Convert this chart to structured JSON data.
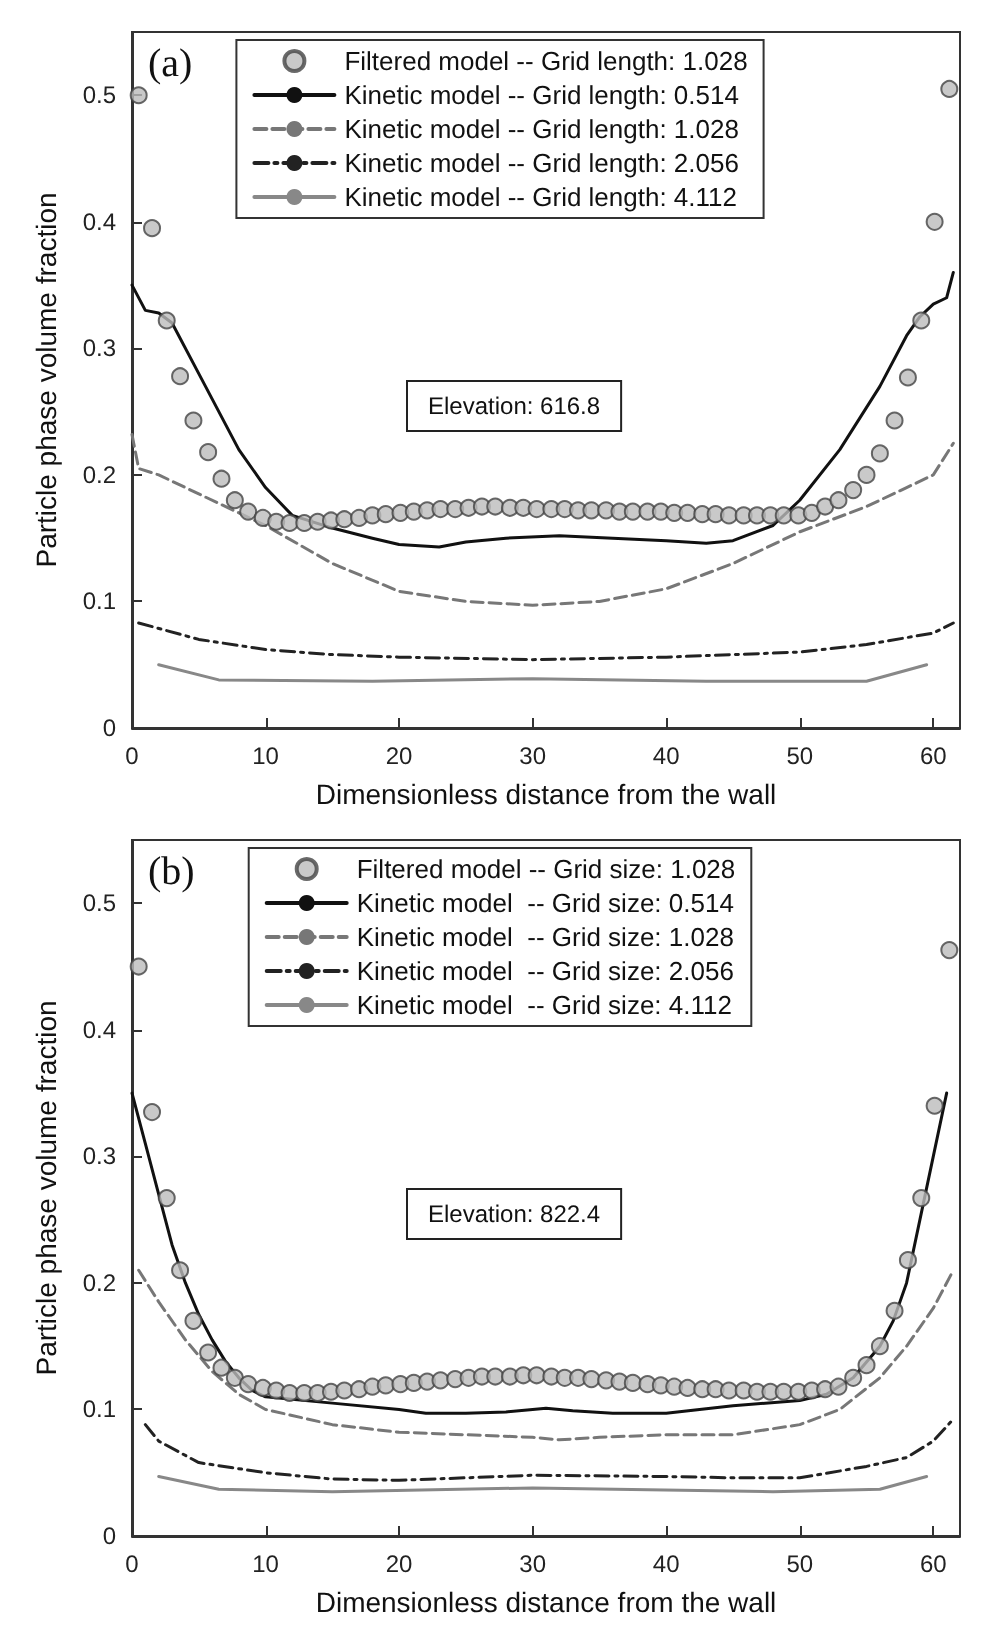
{
  "chart_data": [
    {
      "type": "line",
      "xlabel": "Dimensionless distance from the wall",
      "ylabel": "Particle phase volume fraction",
      "annotations": [
        "(a)",
        "Elevation: 616.8"
      ],
      "xlim": [
        0,
        62
      ],
      "xticks": [
        0,
        10,
        20,
        30,
        40,
        50,
        60
      ],
      "ylim": [
        0,
        0.55
      ],
      "yticks": [
        0,
        0.1,
        0.2,
        0.3,
        0.4,
        0.5
      ],
      "grid": false,
      "legend": "top",
      "series": [
        {
          "name": "Filtered model -- Grid length: 1.028",
          "type": "scatter",
          "marker": "circle",
          "color": "#bbbbbb",
          "x": [
            0.5,
            1.5,
            2.6,
            3.6,
            4.6,
            5.7,
            6.7,
            7.7,
            8.7,
            9.8,
            10.8,
            11.8,
            12.9,
            13.9,
            14.9,
            15.9,
            17.0,
            18.0,
            19.0,
            20.1,
            21.1,
            22.1,
            23.1,
            24.2,
            25.2,
            26.2,
            27.2,
            28.3,
            29.3,
            30.3,
            31.4,
            32.4,
            33.4,
            34.4,
            35.5,
            36.5,
            37.5,
            38.6,
            39.6,
            40.6,
            41.6,
            42.7,
            43.7,
            44.7,
            45.8,
            46.8,
            47.8,
            48.8,
            49.9,
            50.9,
            51.9,
            52.9,
            54.0,
            55.0,
            56.0,
            57.1,
            58.1,
            59.1,
            60.1,
            61.2
          ],
          "values": [
            0.5,
            0.395,
            0.322,
            0.278,
            0.243,
            0.218,
            0.197,
            0.18,
            0.171,
            0.166,
            0.163,
            0.162,
            0.162,
            0.163,
            0.164,
            0.165,
            0.166,
            0.168,
            0.169,
            0.17,
            0.171,
            0.172,
            0.173,
            0.173,
            0.174,
            0.175,
            0.175,
            0.174,
            0.174,
            0.173,
            0.173,
            0.173,
            0.172,
            0.172,
            0.172,
            0.171,
            0.171,
            0.171,
            0.171,
            0.17,
            0.17,
            0.169,
            0.169,
            0.168,
            0.168,
            0.168,
            0.168,
            0.168,
            0.168,
            0.17,
            0.175,
            0.18,
            0.188,
            0.2,
            0.217,
            0.243,
            0.277,
            0.322,
            0.4,
            0.505
          ]
        },
        {
          "name": "Kinetic model -- Grid length: 0.514",
          "type": "line",
          "line_style": "solid",
          "marker": "none",
          "color": "#111111",
          "x": [
            0,
            1,
            2,
            3,
            5,
            8,
            10,
            12,
            15,
            18,
            20,
            23,
            25,
            28,
            32,
            36,
            40,
            43,
            45,
            48,
            50,
            53,
            56,
            58,
            59,
            60,
            61,
            61.5
          ],
          "values": [
            0.35,
            0.33,
            0.328,
            0.32,
            0.28,
            0.22,
            0.19,
            0.168,
            0.158,
            0.15,
            0.145,
            0.143,
            0.147,
            0.15,
            0.152,
            0.15,
            0.148,
            0.146,
            0.148,
            0.16,
            0.18,
            0.22,
            0.27,
            0.31,
            0.325,
            0.335,
            0.34,
            0.36
          ]
        },
        {
          "name": "Kinetic model -- Grid length: 1.028",
          "type": "line",
          "line_style": "dashed",
          "marker": "none",
          "color": "#777777",
          "x": [
            0,
            0.5,
            2,
            5,
            10,
            15,
            20,
            25,
            30,
            35,
            40,
            45,
            50,
            55,
            58,
            60,
            61.5
          ],
          "values": [
            0.232,
            0.205,
            0.2,
            0.185,
            0.16,
            0.13,
            0.108,
            0.1,
            0.097,
            0.1,
            0.11,
            0.13,
            0.155,
            0.175,
            0.19,
            0.2,
            0.225
          ]
        },
        {
          "name": "Kinetic model -- Grid length: 2.056",
          "type": "line",
          "line_style": "dotted",
          "marker": "none",
          "color": "#222222",
          "x": [
            0.5,
            5,
            10,
            15,
            20,
            30,
            40,
            50,
            55,
            60,
            61.5
          ],
          "values": [
            0.083,
            0.07,
            0.062,
            0.058,
            0.056,
            0.054,
            0.056,
            0.06,
            0.066,
            0.075,
            0.083
          ]
        },
        {
          "name": "Kinetic model -- Grid length: 4.112",
          "type": "line",
          "line_style": "solid",
          "marker": "none",
          "color": "#888888",
          "x": [
            2,
            6.5,
            18,
            30,
            43,
            55,
            59.5
          ],
          "values": [
            0.05,
            0.038,
            0.037,
            0.039,
            0.037,
            0.037,
            0.05
          ]
        }
      ]
    },
    {
      "type": "line",
      "xlabel": "Dimensionless distance from the wall",
      "ylabel": "Particle phase volume fraction",
      "annotations": [
        "(b)",
        "Elevation: 822.4"
      ],
      "xlim": [
        0,
        62
      ],
      "xticks": [
        0,
        10,
        20,
        30,
        40,
        50,
        60
      ],
      "ylim": [
        0,
        0.55
      ],
      "yticks": [
        0,
        0.1,
        0.2,
        0.3,
        0.4,
        0.5
      ],
      "grid": false,
      "legend": "top",
      "series": [
        {
          "name": "Filtered model -- Grid size: 1.028",
          "type": "scatter",
          "marker": "circle",
          "color": "#bbbbbb",
          "x": [
            0.5,
            1.5,
            2.6,
            3.6,
            4.6,
            5.7,
            6.7,
            7.7,
            8.7,
            9.8,
            10.8,
            11.8,
            12.9,
            13.9,
            14.9,
            15.9,
            17.0,
            18.0,
            19.0,
            20.1,
            21.1,
            22.1,
            23.1,
            24.2,
            25.2,
            26.2,
            27.2,
            28.3,
            29.3,
            30.3,
            31.4,
            32.4,
            33.4,
            34.4,
            35.5,
            36.5,
            37.5,
            38.6,
            39.6,
            40.6,
            41.6,
            42.7,
            43.7,
            44.7,
            45.8,
            46.8,
            47.8,
            48.8,
            49.9,
            50.9,
            51.9,
            52.9,
            54.0,
            55.0,
            56.0,
            57.1,
            58.1,
            59.1,
            60.1,
            61.2
          ],
          "values": [
            0.45,
            0.335,
            0.267,
            0.21,
            0.17,
            0.145,
            0.133,
            0.125,
            0.12,
            0.117,
            0.115,
            0.113,
            0.113,
            0.113,
            0.114,
            0.115,
            0.116,
            0.118,
            0.119,
            0.12,
            0.121,
            0.122,
            0.123,
            0.124,
            0.125,
            0.126,
            0.126,
            0.126,
            0.127,
            0.127,
            0.126,
            0.125,
            0.125,
            0.124,
            0.123,
            0.122,
            0.121,
            0.12,
            0.119,
            0.118,
            0.117,
            0.116,
            0.116,
            0.115,
            0.115,
            0.114,
            0.114,
            0.114,
            0.114,
            0.115,
            0.116,
            0.118,
            0.125,
            0.135,
            0.15,
            0.178,
            0.218,
            0.267,
            0.34,
            0.463
          ]
        },
        {
          "name": "Kinetic model  -- Grid size: 0.514",
          "type": "line",
          "line_style": "solid",
          "marker": "none",
          "color": "#111111",
          "x": [
            0,
            1,
            2,
            3,
            4,
            5,
            6,
            7,
            8,
            9,
            10,
            15,
            20,
            22,
            25,
            28,
            30,
            31,
            33,
            36,
            40,
            45,
            50,
            52,
            54,
            56,
            57,
            58,
            59,
            60,
            61
          ],
          "values": [
            0.35,
            0.31,
            0.27,
            0.23,
            0.2,
            0.175,
            0.155,
            0.138,
            0.125,
            0.115,
            0.11,
            0.105,
            0.1,
            0.097,
            0.097,
            0.098,
            0.1,
            0.101,
            0.099,
            0.097,
            0.097,
            0.103,
            0.107,
            0.112,
            0.125,
            0.15,
            0.17,
            0.2,
            0.25,
            0.3,
            0.35
          ]
        },
        {
          "name": "Kinetic model  -- Grid size: 1.028",
          "type": "line",
          "line_style": "dashed",
          "marker": "none",
          "color": "#777777",
          "x": [
            0.5,
            2,
            4,
            6,
            8,
            10,
            15,
            20,
            25,
            30,
            32,
            35,
            40,
            45,
            50,
            53,
            56,
            58,
            60,
            61.5
          ],
          "values": [
            0.21,
            0.185,
            0.155,
            0.13,
            0.112,
            0.1,
            0.088,
            0.082,
            0.08,
            0.078,
            0.076,
            0.078,
            0.08,
            0.08,
            0.088,
            0.1,
            0.125,
            0.15,
            0.18,
            0.21
          ]
        },
        {
          "name": "Kinetic model  -- Grid size: 2.056",
          "type": "line",
          "line_style": "dotted",
          "marker": "none",
          "color": "#222222",
          "x": [
            1,
            2,
            5,
            10,
            15,
            20,
            30,
            40,
            45,
            50,
            55,
            58,
            60,
            61.3
          ],
          "values": [
            0.088,
            0.075,
            0.058,
            0.05,
            0.045,
            0.044,
            0.048,
            0.047,
            0.046,
            0.046,
            0.055,
            0.062,
            0.075,
            0.09
          ]
        },
        {
          "name": "Kinetic model  -- Grid size: 4.112",
          "type": "line",
          "line_style": "solid",
          "marker": "none",
          "color": "#888888",
          "x": [
            2,
            6.5,
            15,
            30,
            48,
            56,
            59.5
          ],
          "values": [
            0.047,
            0.037,
            0.035,
            0.038,
            0.035,
            0.037,
            0.047
          ]
        }
      ]
    }
  ]
}
